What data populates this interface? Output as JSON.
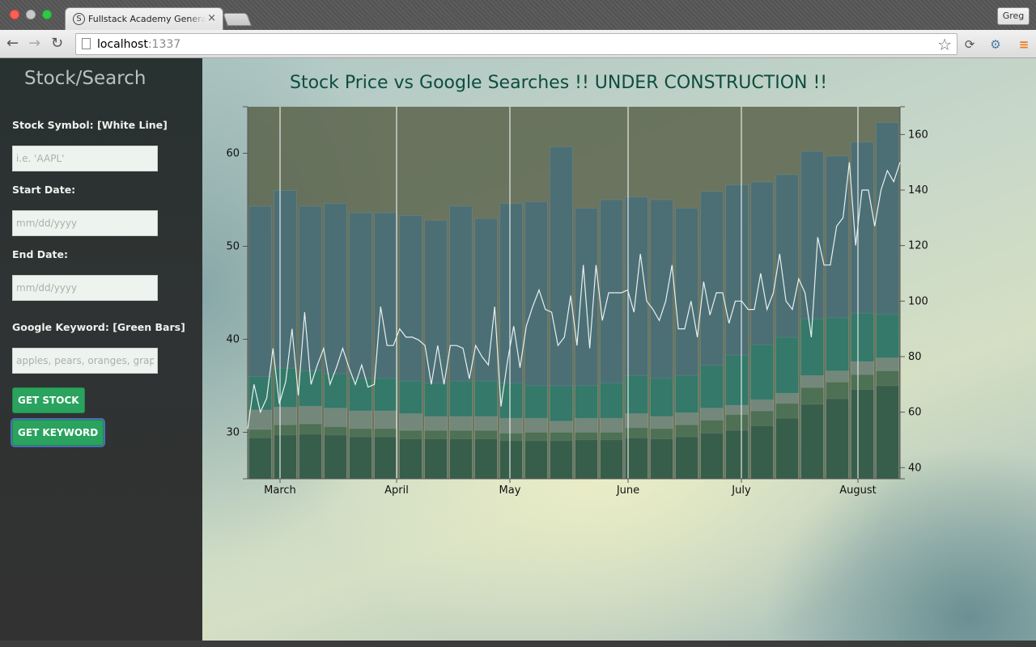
{
  "browser": {
    "tab_title": "Fullstack Academy Generator",
    "tab_favicon": "S",
    "url_host": "localhost",
    "url_port": ":1337",
    "profile_name": "Greg"
  },
  "sidebar": {
    "brand": "Stock/Search",
    "stock_label": "Stock Symbol: [White Line]",
    "stock_placeholder": "i.e. 'AAPL'",
    "start_label": "Start Date:",
    "start_placeholder": "mm/dd/yyyy",
    "end_label": "End Date:",
    "end_placeholder": "mm/dd/yyyy",
    "keyword_label": "Google Keyword: [Green Bars]",
    "keyword_placeholder": "apples, pears, oranges, grapes",
    "get_stock": "GET STOCK",
    "get_keyword": "GET KEYWORD"
  },
  "colors": {
    "button": "#29a35e",
    "title": "#0d4d3f",
    "plot_bg": "#5d6650",
    "line": "#e8f0ee"
  },
  "chart_data": {
    "type": "bar+line",
    "title": "Stock Price vs Google Searches !! UNDER CONSTRUCTION !!",
    "x_tick_labels": [
      "March",
      "April",
      "May",
      "June",
      "July",
      "August"
    ],
    "y_left_ticks": [
      30,
      40,
      50,
      60
    ],
    "y_left_range": [
      25,
      65
    ],
    "y_right_ticks": [
      40,
      60,
      80,
      100,
      120,
      140,
      160
    ],
    "y_right_range": [
      36,
      170
    ],
    "bar_layers": [
      {
        "name": "layer1",
        "color": "#355b4b",
        "values": [
          29.4,
          29.7,
          29.8,
          29.7,
          29.5,
          29.5,
          29.3,
          29.3,
          29.3,
          29.3,
          29.1,
          29.1,
          29.1,
          29.2,
          29.2,
          29.4,
          29.3,
          29.5,
          29.9,
          30.2,
          30.7,
          31.5,
          33.0,
          33.6,
          34.6,
          35.0
        ]
      },
      {
        "name": "layer2",
        "color": "#4b6e50",
        "values": [
          30.3,
          30.8,
          30.9,
          30.6,
          30.4,
          30.4,
          30.2,
          30.2,
          30.2,
          30.2,
          29.9,
          30.0,
          30.0,
          30.0,
          30.0,
          30.5,
          30.4,
          30.8,
          31.3,
          31.9,
          32.3,
          33.1,
          34.8,
          35.4,
          36.2,
          36.6
        ]
      },
      {
        "name": "layer3",
        "color": "#78897c",
        "values": [
          32.4,
          32.7,
          32.8,
          32.6,
          32.3,
          32.3,
          32.0,
          31.7,
          31.7,
          31.7,
          31.5,
          31.5,
          31.2,
          31.5,
          31.5,
          32.0,
          31.7,
          32.1,
          32.6,
          32.9,
          33.5,
          34.2,
          36.1,
          36.6,
          37.6,
          38.0
        ]
      },
      {
        "name": "layer4",
        "color": "#327a68",
        "values": [
          36.0,
          36.9,
          36.6,
          36.3,
          35.8,
          35.8,
          35.5,
          35.3,
          35.5,
          35.5,
          35.3,
          35.0,
          35.0,
          35.0,
          35.3,
          36.1,
          35.8,
          36.1,
          37.2,
          38.3,
          39.4,
          40.2,
          42.2,
          42.3,
          42.8,
          42.7
        ]
      },
      {
        "name": "layer5",
        "color": "#4a6f78",
        "values": [
          54.3,
          56.0,
          54.3,
          54.6,
          53.6,
          53.6,
          53.3,
          52.8,
          54.3,
          53.0,
          54.6,
          54.8,
          60.7,
          54.1,
          55.0,
          55.3,
          55.0,
          54.1,
          55.9,
          56.6,
          56.9,
          57.7,
          60.2,
          59.7,
          61.2,
          63.3
        ]
      }
    ],
    "stock_line_values": [
      54,
      70,
      60,
      65,
      83,
      63,
      71,
      90,
      66,
      96,
      70,
      77,
      83,
      70,
      76,
      83,
      76,
      70,
      77,
      69,
      70,
      98,
      84,
      84,
      90,
      87,
      87,
      86,
      84,
      70,
      84,
      70,
      84,
      84,
      83,
      72,
      84,
      80,
      77,
      98,
      62,
      78,
      91,
      76,
      91,
      98,
      104,
      97,
      96,
      84,
      87,
      102,
      84,
      113,
      83,
      113,
      93,
      103,
      103,
      103,
      104,
      96,
      117,
      100,
      97,
      93,
      100,
      113,
      90,
      90,
      100,
      87,
      107,
      95,
      103,
      103,
      92,
      100,
      100,
      97,
      97,
      110,
      97,
      103,
      117,
      100,
      97,
      108,
      103,
      87,
      123,
      113,
      113,
      127,
      130,
      150,
      120,
      140,
      140,
      127,
      140,
      147,
      143,
      150
    ]
  }
}
